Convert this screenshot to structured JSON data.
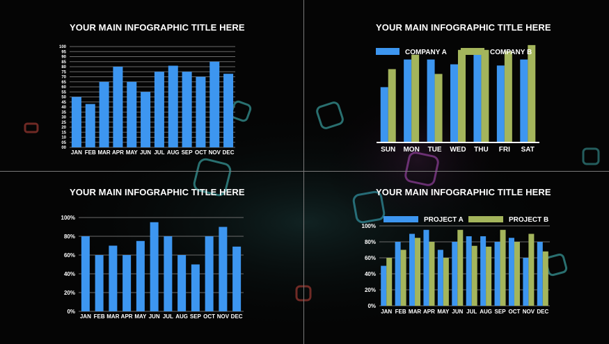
{
  "colors": {
    "blue": "#3d96f0",
    "green": "#a4b55c",
    "grid": "#6b6b6b",
    "text": "#ffffff",
    "divider": "#7a7a7a"
  },
  "panels": [
    {
      "title": "YOUR MAIN INFOGRAPHIC TITLE HERE"
    },
    {
      "title": "YOUR MAIN INFOGRAPHIC TITLE HERE"
    },
    {
      "title": "YOUR MAIN INFOGRAPHIC TITLE HERE"
    },
    {
      "title": "YOUR MAIN INFOGRAPHIC TITLE HERE"
    }
  ],
  "chart_data": [
    {
      "type": "bar",
      "title": "YOUR MAIN INFOGRAPHIC TITLE HERE",
      "categories": [
        "JAN",
        "FEB",
        "MAR",
        "APR",
        "MAY",
        "JUN",
        "JUL",
        "AUG",
        "SEP",
        "OCT",
        "NOV",
        "DEC"
      ],
      "values": [
        50,
        43,
        65,
        80,
        65,
        55,
        75,
        81,
        75,
        70,
        85,
        73
      ],
      "ylim": [
        0,
        100
      ],
      "yticks": [
        "00",
        "05",
        "10",
        "15",
        "20",
        "25",
        "30",
        "35",
        "40",
        "45",
        "50",
        "55",
        "60",
        "65",
        "70",
        "75",
        "80",
        "85",
        "90",
        "95",
        "100"
      ],
      "grid": true
    },
    {
      "type": "bar",
      "title": "YOUR MAIN INFOGRAPHIC TITLE HERE",
      "categories": [
        "SUN",
        "MON",
        "TUE",
        "WED",
        "THU",
        "FRI",
        "SAT"
      ],
      "series": [
        {
          "name": "COMPANY A",
          "values": [
            46,
            69,
            69,
            65,
            73,
            64,
            69
          ]
        },
        {
          "name": "COMPANY B",
          "values": [
            61,
            73,
            57,
            77,
            77,
            76,
            81
          ]
        }
      ],
      "ylim": [
        0,
        100
      ],
      "grid": false,
      "legend": "top"
    },
    {
      "type": "bar",
      "title": "YOUR MAIN INFOGRAPHIC TITLE HERE",
      "categories": [
        "JAN",
        "FEB",
        "MAR",
        "APR",
        "MAY",
        "JUN",
        "JUL",
        "AUG",
        "SEP",
        "OCT",
        "NOV",
        "DEC"
      ],
      "values": [
        80,
        60,
        70,
        60,
        75,
        95,
        80,
        60,
        50,
        80,
        90,
        69
      ],
      "ylim": [
        0,
        100
      ],
      "yticks": [
        "0%",
        "20%",
        "40%",
        "60%",
        "80%",
        "100%"
      ],
      "grid": true
    },
    {
      "type": "bar",
      "title": "YOUR MAIN INFOGRAPHIC TITLE HERE",
      "categories": [
        "JAN",
        "FEB",
        "MAR",
        "APR",
        "MAY",
        "JUN",
        "JUL",
        "AUG",
        "SEP",
        "OCT",
        "NOV",
        "DEC"
      ],
      "series": [
        {
          "name": "PROJECT A",
          "values": [
            50,
            80,
            90,
            95,
            70,
            80,
            87,
            87,
            80,
            85,
            60,
            80
          ]
        },
        {
          "name": "PROJECT B",
          "values": [
            60,
            70,
            85,
            80,
            60,
            95,
            75,
            74,
            95,
            80,
            90,
            68
          ]
        }
      ],
      "ylim": [
        0,
        100
      ],
      "yticks": [
        "0%",
        "20%",
        "40%",
        "60%",
        "80%",
        "100%"
      ],
      "grid": true,
      "legend": "top"
    }
  ]
}
